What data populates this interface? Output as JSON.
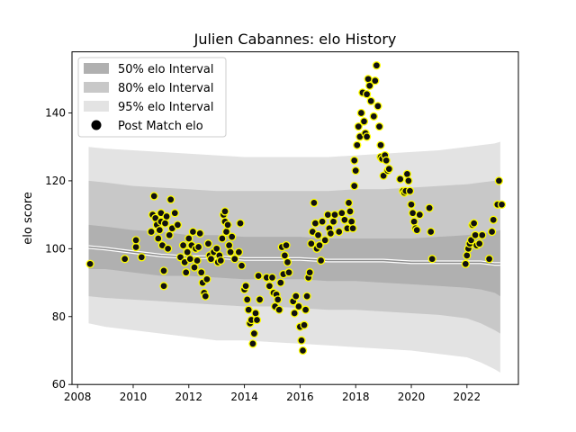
{
  "chart_data": {
    "type": "scatter",
    "title": "Julien Cabannes: elo History",
    "xlabel": "",
    "ylabel": "elo score",
    "xlim": [
      2007.8,
      2023.85
    ],
    "ylim": [
      60,
      158
    ],
    "xticks": [
      2008,
      2010,
      2012,
      2014,
      2016,
      2018,
      2020,
      2022
    ],
    "yticks": [
      60,
      80,
      100,
      120,
      140
    ],
    "legend_position": "top-left",
    "legend": [
      {
        "label": "50% elo Interval",
        "kind": "band",
        "color": "#b0b0b0"
      },
      {
        "label": "80% elo Interval",
        "kind": "band",
        "color": "#c8c8c8"
      },
      {
        "label": "95% elo Interval",
        "kind": "band",
        "color": "#e3e3e3"
      },
      {
        "label": "Post Match elo",
        "kind": "marker",
        "color": "#000000"
      }
    ],
    "colors": {
      "band50": "#b0b0b0",
      "band80": "#c8c8c8",
      "band95": "#e3e3e3",
      "mean_line": "#8c8c8c",
      "mean_glow": "#ffffff",
      "point_fill": "#111111",
      "point_edge": "#ffff00"
    },
    "bands": {
      "x": [
        2008.4,
        2009.0,
        2010.0,
        2011.0,
        2012.0,
        2013.0,
        2014.0,
        2015.0,
        2016.0,
        2017.0,
        2018.0,
        2019.0,
        2020.0,
        2021.0,
        2022.0,
        2022.5,
        2023.0,
        2023.2
      ],
      "mean": [
        100.5,
        100.0,
        99.0,
        98.0,
        97.5,
        97.5,
        97.0,
        97.0,
        97.0,
        96.5,
        96.5,
        96.5,
        96.0,
        96.0,
        96.0,
        96.0,
        95.5,
        95.5
      ],
      "lo50": [
        94,
        94,
        93,
        92,
        92,
        91.5,
        91,
        91,
        91,
        90.5,
        90.5,
        90,
        89.5,
        89,
        88.5,
        88,
        87,
        86
      ],
      "hi50": [
        107,
        106.5,
        105.5,
        105,
        104,
        104,
        103.5,
        103.5,
        103.5,
        103,
        103,
        103,
        103,
        103.5,
        104,
        104.5,
        105,
        105.5
      ],
      "lo80": [
        86,
        85.5,
        85,
        84.5,
        84,
        83.5,
        83,
        83,
        82.5,
        82,
        82,
        81.5,
        81,
        80.5,
        79.5,
        78,
        76,
        75
      ],
      "hi80": [
        120,
        119.5,
        118.5,
        118,
        117.5,
        117,
        117,
        117,
        117,
        117,
        117.5,
        117.5,
        118,
        118.5,
        119,
        119.5,
        120,
        121
      ],
      "lo95": [
        78,
        77,
        76,
        75,
        74,
        73,
        73,
        72.5,
        72,
        71.5,
        71,
        70.5,
        70,
        69,
        68,
        66.5,
        64.5,
        63.5
      ],
      "hi95": [
        130,
        129.5,
        129,
        128.5,
        128,
        127.5,
        127,
        127,
        127,
        127,
        127.5,
        128,
        128.5,
        129,
        130,
        130.5,
        131,
        131.5
      ]
    },
    "points": [
      [
        2008.45,
        95.5
      ],
      [
        2009.7,
        97
      ],
      [
        2010.1,
        100.5
      ],
      [
        2010.1,
        102.5
      ],
      [
        2010.3,
        97.5
      ],
      [
        2010.65,
        105
      ],
      [
        2010.7,
        110
      ],
      [
        2010.75,
        115.5
      ],
      [
        2010.8,
        109
      ],
      [
        2010.85,
        107
      ],
      [
        2010.9,
        103
      ],
      [
        2010.95,
        105.5
      ],
      [
        2011.0,
        108
      ],
      [
        2011.0,
        110.5
      ],
      [
        2011.05,
        101
      ],
      [
        2011.1,
        89
      ],
      [
        2011.1,
        93.5
      ],
      [
        2011.15,
        107.5
      ],
      [
        2011.2,
        109.5
      ],
      [
        2011.25,
        100
      ],
      [
        2011.3,
        104
      ],
      [
        2011.35,
        114.5
      ],
      [
        2011.4,
        106
      ],
      [
        2011.5,
        110.5
      ],
      [
        2011.6,
        107
      ],
      [
        2011.7,
        97.5
      ],
      [
        2011.8,
        101
      ],
      [
        2011.85,
        96
      ],
      [
        2011.9,
        93
      ],
      [
        2011.95,
        99
      ],
      [
        2012.0,
        103
      ],
      [
        2012.05,
        97
      ],
      [
        2012.1,
        101
      ],
      [
        2012.15,
        105
      ],
      [
        2012.2,
        94.5
      ],
      [
        2012.25,
        100
      ],
      [
        2012.3,
        96.5
      ],
      [
        2012.35,
        100.5
      ],
      [
        2012.4,
        104.5
      ],
      [
        2012.45,
        93
      ],
      [
        2012.5,
        90
      ],
      [
        2012.55,
        87
      ],
      [
        2012.6,
        86
      ],
      [
        2012.65,
        91
      ],
      [
        2012.7,
        101.5
      ],
      [
        2012.75,
        98
      ],
      [
        2012.8,
        97
      ],
      [
        2012.9,
        99
      ],
      [
        2013.0,
        100
      ],
      [
        2013.05,
        96
      ],
      [
        2013.1,
        98
      ],
      [
        2013.15,
        96.5
      ],
      [
        2013.2,
        103
      ],
      [
        2013.25,
        110
      ],
      [
        2013.3,
        108
      ],
      [
        2013.3,
        111
      ],
      [
        2013.35,
        105
      ],
      [
        2013.4,
        107
      ],
      [
        2013.45,
        101
      ],
      [
        2013.5,
        99
      ],
      [
        2013.55,
        103.5
      ],
      [
        2013.65,
        97
      ],
      [
        2013.8,
        99
      ],
      [
        2013.85,
        107.5
      ],
      [
        2013.9,
        95
      ],
      [
        2014.0,
        88
      ],
      [
        2014.05,
        89
      ],
      [
        2014.1,
        85
      ],
      [
        2014.15,
        82
      ],
      [
        2014.2,
        78
      ],
      [
        2014.25,
        79
      ],
      [
        2014.3,
        72
      ],
      [
        2014.35,
        75
      ],
      [
        2014.4,
        81
      ],
      [
        2014.45,
        79
      ],
      [
        2014.5,
        92
      ],
      [
        2014.55,
        85
      ],
      [
        2014.8,
        91.5
      ],
      [
        2014.9,
        89
      ],
      [
        2015.0,
        91.5
      ],
      [
        2015.05,
        87
      ],
      [
        2015.1,
        83
      ],
      [
        2015.15,
        86.5
      ],
      [
        2015.2,
        85
      ],
      [
        2015.25,
        82
      ],
      [
        2015.3,
        90
      ],
      [
        2015.35,
        100.5
      ],
      [
        2015.4,
        92.5
      ],
      [
        2015.45,
        98
      ],
      [
        2015.5,
        101
      ],
      [
        2015.55,
        96
      ],
      [
        2015.6,
        93
      ],
      [
        2015.75,
        84.5
      ],
      [
        2015.8,
        81
      ],
      [
        2015.85,
        86
      ],
      [
        2015.95,
        83
      ],
      [
        2016.0,
        77
      ],
      [
        2016.05,
        73
      ],
      [
        2016.1,
        70
      ],
      [
        2016.15,
        77.5
      ],
      [
        2016.2,
        82
      ],
      [
        2016.25,
        86
      ],
      [
        2016.3,
        91.5
      ],
      [
        2016.35,
        93
      ],
      [
        2016.4,
        101.5
      ],
      [
        2016.45,
        105
      ],
      [
        2016.5,
        113.5
      ],
      [
        2016.55,
        107.5
      ],
      [
        2016.6,
        100
      ],
      [
        2016.65,
        104
      ],
      [
        2016.7,
        101
      ],
      [
        2016.75,
        96.5
      ],
      [
        2016.8,
        108
      ],
      [
        2016.9,
        102.5
      ],
      [
        2017.0,
        110
      ],
      [
        2017.05,
        106
      ],
      [
        2017.1,
        104.5
      ],
      [
        2017.2,
        108
      ],
      [
        2017.25,
        110
      ],
      [
        2017.4,
        105
      ],
      [
        2017.5,
        110.5
      ],
      [
        2017.6,
        108.5
      ],
      [
        2017.7,
        106
      ],
      [
        2017.75,
        113.5
      ],
      [
        2017.8,
        111
      ],
      [
        2017.85,
        108
      ],
      [
        2017.9,
        106
      ],
      [
        2017.95,
        118.5
      ],
      [
        2017.95,
        126
      ],
      [
        2018.0,
        123
      ],
      [
        2018.05,
        130.5
      ],
      [
        2018.1,
        136
      ],
      [
        2018.15,
        133
      ],
      [
        2018.2,
        140
      ],
      [
        2018.25,
        146
      ],
      [
        2018.3,
        137.5
      ],
      [
        2018.35,
        134
      ],
      [
        2018.4,
        133
      ],
      [
        2018.4,
        145.5
      ],
      [
        2018.45,
        150
      ],
      [
        2018.5,
        148
      ],
      [
        2018.55,
        143.5
      ],
      [
        2018.65,
        139
      ],
      [
        2018.7,
        149.5
      ],
      [
        2018.75,
        154
      ],
      [
        2018.8,
        142
      ],
      [
        2018.85,
        136
      ],
      [
        2018.9,
        130.5
      ],
      [
        2018.9,
        127
      ],
      [
        2018.95,
        126.5
      ],
      [
        2019.0,
        121.5
      ],
      [
        2019.05,
        127.5
      ],
      [
        2019.1,
        126
      ],
      [
        2019.15,
        123
      ],
      [
        2019.2,
        123.5
      ],
      [
        2019.6,
        120.5
      ],
      [
        2019.7,
        117
      ],
      [
        2019.75,
        116.5
      ],
      [
        2019.8,
        117
      ],
      [
        2019.85,
        122
      ],
      [
        2019.9,
        120
      ],
      [
        2019.95,
        117
      ],
      [
        2020.0,
        113
      ],
      [
        2020.05,
        110.5
      ],
      [
        2020.1,
        108
      ],
      [
        2020.15,
        106
      ],
      [
        2020.2,
        105.5
      ],
      [
        2020.3,
        110
      ],
      [
        2020.65,
        112
      ],
      [
        2020.7,
        105
      ],
      [
        2020.75,
        97
      ],
      [
        2021.95,
        95.5
      ],
      [
        2022.0,
        98
      ],
      [
        2022.05,
        100
      ],
      [
        2022.1,
        101.5
      ],
      [
        2022.15,
        102.5
      ],
      [
        2022.2,
        107
      ],
      [
        2022.25,
        107.5
      ],
      [
        2022.3,
        104
      ],
      [
        2022.35,
        101
      ],
      [
        2022.45,
        101.5
      ],
      [
        2022.55,
        104
      ],
      [
        2022.8,
        97
      ],
      [
        2022.9,
        105
      ],
      [
        2022.95,
        108.5
      ],
      [
        2023.1,
        113
      ],
      [
        2023.15,
        120
      ],
      [
        2023.25,
        113
      ]
    ]
  }
}
